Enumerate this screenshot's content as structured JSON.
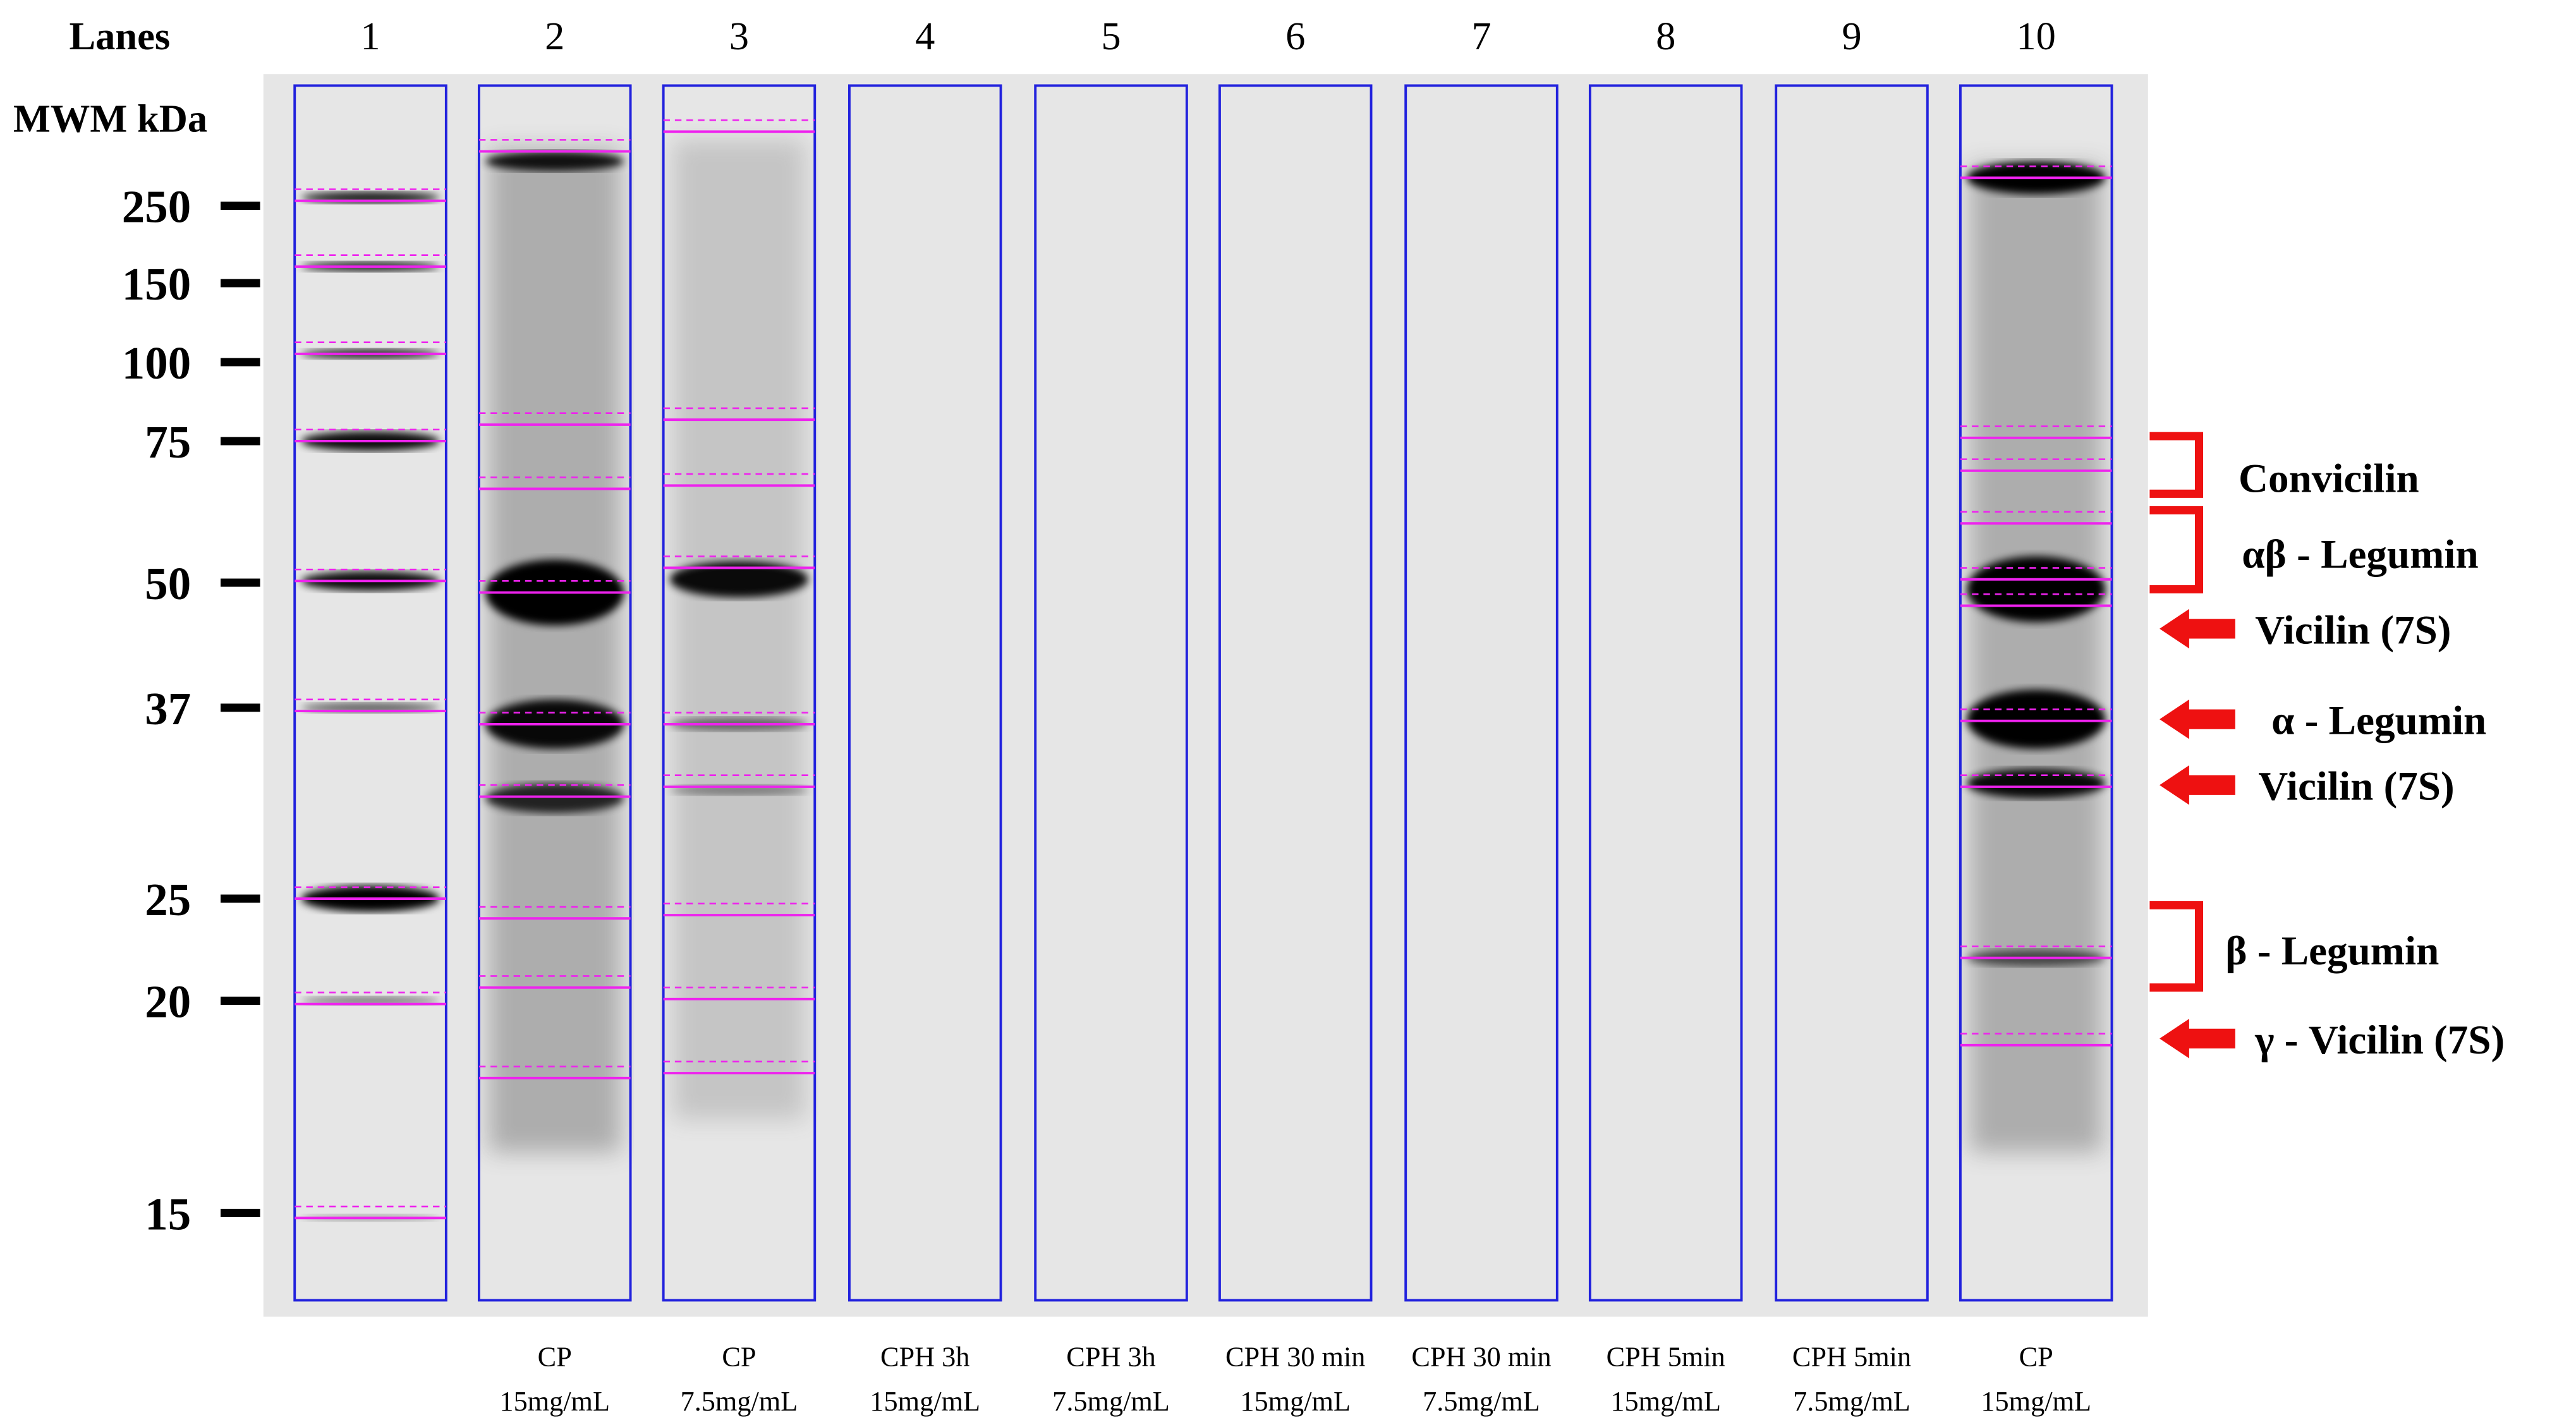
{
  "header": {
    "lanes_label": "Lanes",
    "mwm_label": "MWM kDa"
  },
  "lanes": [
    "1",
    "2",
    "3",
    "4",
    "5",
    "6",
    "7",
    "8",
    "9",
    "10"
  ],
  "markers": [
    "250",
    "150",
    "100",
    "75",
    "50",
    "37",
    "25",
    "20",
    "15"
  ],
  "samples": [
    {
      "line1": "CP",
      "line2": "15mg/mL"
    },
    {
      "line1": "CP",
      "line2": "7.5mg/mL"
    },
    {
      "line1": "CPH 3h",
      "line2": "15mg/mL"
    },
    {
      "line1": "CPH 3h",
      "line2": "7.5mg/mL"
    },
    {
      "line1": "CPH 30 min",
      "line2": "15mg/mL"
    },
    {
      "line1": "CPH 30 min",
      "line2": "7.5mg/mL"
    },
    {
      "line1": "CPH 5min",
      "line2": "15mg/mL"
    },
    {
      "line1": "CPH 5min",
      "line2": "7.5mg/mL"
    },
    {
      "line1": "CP",
      "line2": "15mg/mL"
    }
  ],
  "annotations": [
    "Convicilin",
    "αβ - Legumin",
    "Vicilin (7S)",
    "α - Legumin",
    "Vicilin (7S)",
    "β - Legumin",
    "γ - Vicilin (7S)"
  ]
}
